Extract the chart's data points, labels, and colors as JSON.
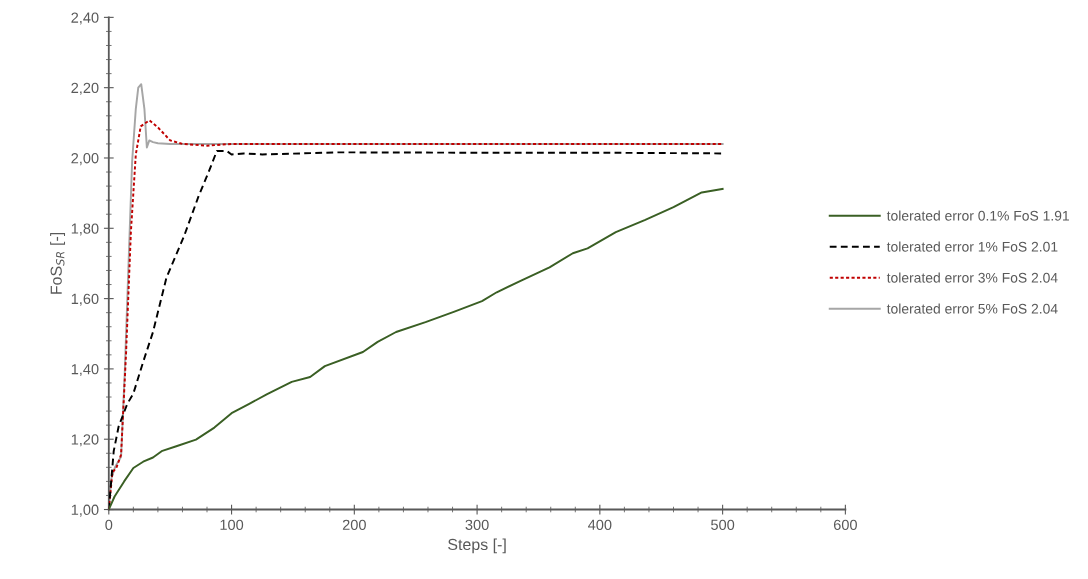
{
  "chart_data": {
    "type": "line",
    "xlabel": "Steps [-]",
    "ylabel": "FoS$_{SR}$ [-]",
    "xlim": [
      0,
      600
    ],
    "xticks": [
      0,
      100,
      200,
      300,
      400,
      500,
      600
    ],
    "ylim": [
      1.0,
      2.4
    ],
    "yticks": [
      {
        "value": 1.0,
        "label": "1,00"
      },
      {
        "value": 1.2,
        "label": "1,20"
      },
      {
        "value": 1.4,
        "label": "1,40"
      },
      {
        "value": 1.6,
        "label": "1,60"
      },
      {
        "value": 1.8,
        "label": "1,80"
      },
      {
        "value": 2.0,
        "label": "2,00"
      },
      {
        "value": 2.2,
        "label": "2,20"
      },
      {
        "value": 2.4,
        "label": "2,40"
      }
    ],
    "grid": false,
    "legend": "right",
    "marker": "none",
    "series": [
      {
        "name": "tolerated error 0.1% FoS 1.91",
        "color": "#3a5f24",
        "line_style": "solid",
        "x": [
          0,
          4.7,
          12.5,
          20,
          28,
          36,
          43.6,
          55,
          71,
          86,
          100,
          114,
          129,
          149,
          164,
          176,
          207,
          219,
          234,
          258,
          281,
          304,
          316,
          335,
          359,
          378,
          390,
          413,
          437,
          460,
          483,
          500
        ],
        "values": [
          1.0,
          1.037,
          1.08,
          1.118,
          1.136,
          1.148,
          1.167,
          1.18,
          1.199,
          1.233,
          1.274,
          1.3,
          1.328,
          1.363,
          1.377,
          1.408,
          1.448,
          1.477,
          1.505,
          1.533,
          1.562,
          1.593,
          1.618,
          1.65,
          1.689,
          1.729,
          1.743,
          1.789,
          1.824,
          1.86,
          1.902,
          1.912
        ]
      },
      {
        "name": "tolerated error 1% FoS 2.01",
        "color": "#000000",
        "line_style": "dashed",
        "x": [
          0,
          4,
          8,
          15,
          20,
          28,
          36,
          47,
          61,
          73,
          82,
          88,
          96,
          100,
          110,
          125,
          187,
          300,
          400,
          500
        ],
        "values": [
          1.0,
          1.166,
          1.236,
          1.3,
          1.33,
          1.42,
          1.505,
          1.66,
          1.775,
          1.89,
          1.966,
          2.02,
          2.02,
          2.01,
          2.013,
          2.01,
          2.016,
          2.015,
          2.015,
          2.013
        ]
      },
      {
        "name": "tolerated error 3% FoS 2.04",
        "color": "#c00000",
        "line_style": "dotted",
        "x": [
          0,
          3,
          6,
          10,
          14,
          18,
          22,
          26,
          33,
          40,
          50,
          60,
          80,
          100,
          200,
          300,
          400,
          500
        ],
        "values": [
          1.0,
          1.107,
          1.117,
          1.156,
          1.44,
          1.79,
          2.01,
          2.09,
          2.107,
          2.087,
          2.05,
          2.04,
          2.035,
          2.04,
          2.04,
          2.04,
          2.04,
          2.04
        ]
      },
      {
        "name": "tolerated error 5% FoS 2.04",
        "color": "#a6a6a6",
        "line_style": "solid",
        "x": [
          0,
          2,
          5,
          10,
          13,
          16,
          19,
          22,
          24,
          26.4,
          29,
          31,
          33,
          36,
          40,
          50,
          100,
          200,
          300,
          400,
          500
        ],
        "values": [
          1.0,
          1.087,
          1.12,
          1.15,
          1.39,
          1.69,
          1.99,
          2.14,
          2.2,
          2.21,
          2.14,
          2.03,
          2.05,
          2.045,
          2.042,
          2.04,
          2.04,
          2.04,
          2.04,
          2.04,
          2.04
        ]
      }
    ]
  }
}
